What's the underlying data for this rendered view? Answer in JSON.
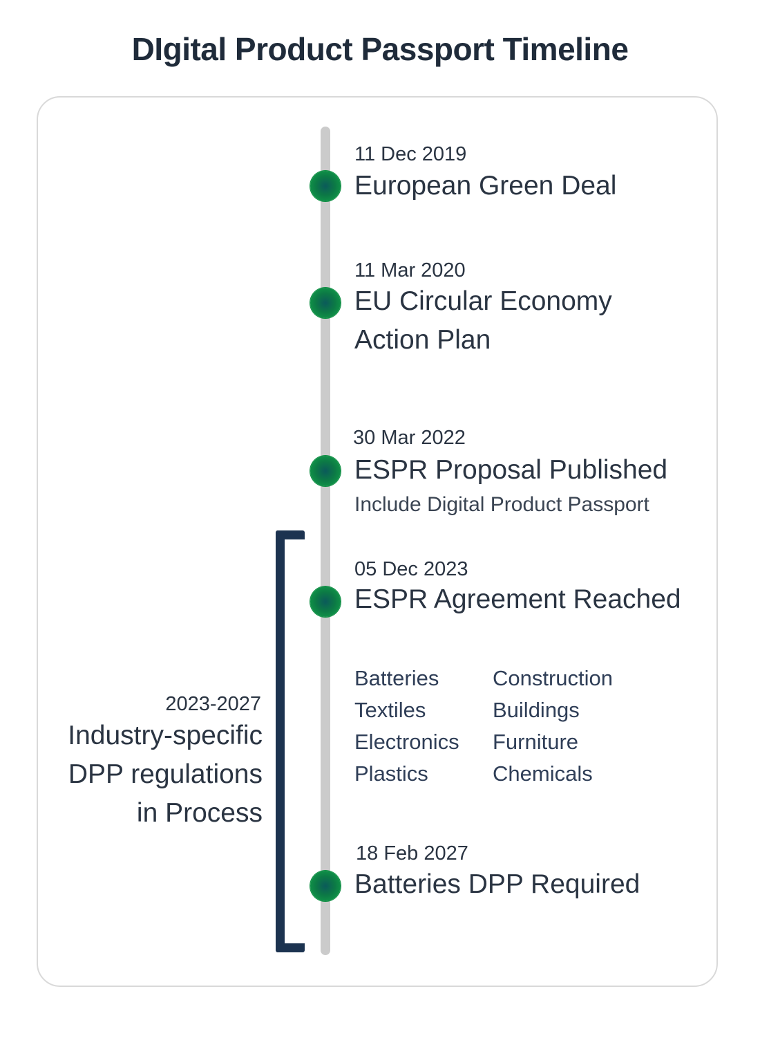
{
  "title": "DIgital Product Passport Timeline",
  "events": [
    {
      "date": "11 Dec 2019",
      "title_lines": [
        "European Green Deal"
      ]
    },
    {
      "date": "11 Mar 2020",
      "title_lines": [
        "EU Circular Economy",
        "Action Plan"
      ]
    },
    {
      "date": "30 Mar 2022",
      "title_lines": [
        "ESPR Proposal Published"
      ],
      "subtitle": "Include Digital Product Passport"
    },
    {
      "date": "05 Dec 2023",
      "title_lines": [
        "ESPR Agreement Reached"
      ]
    },
    {
      "date": "18 Feb 2027",
      "title_lines": [
        "Batteries DPP Required"
      ]
    }
  ],
  "industries": {
    "left": [
      "Batteries",
      "Textiles",
      "Electronics",
      "Plastics"
    ],
    "right": [
      "Construction",
      "Buildings",
      "Furniture",
      "Chemicals"
    ]
  },
  "range_note": {
    "range": "2023-2027",
    "lines": [
      "Industry-specific",
      "DPP regulations",
      "in Process"
    ]
  },
  "colors": {
    "dot": "#13a84a",
    "axis": "#cbcbcb",
    "bracket": "#1c3350",
    "text": "#2a3442"
  }
}
